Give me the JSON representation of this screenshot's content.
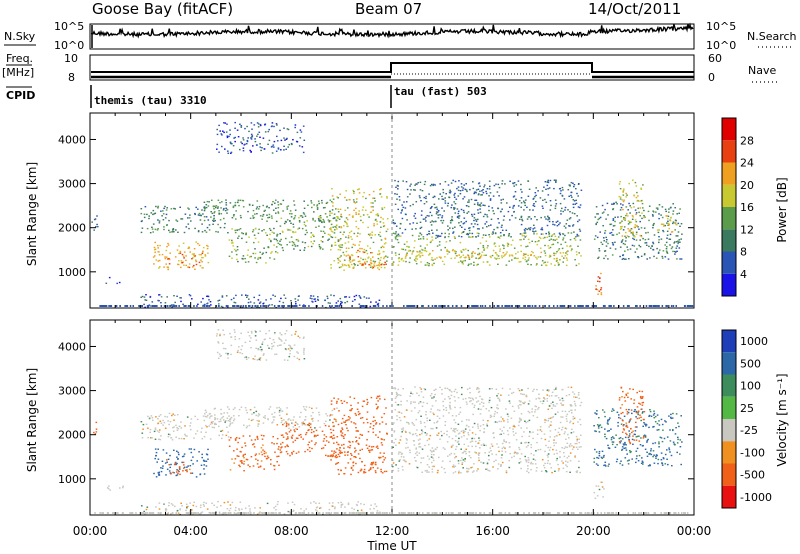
{
  "header": {
    "station": "Goose Bay (fitACF)",
    "beam": "Beam 07",
    "date": "14/Oct/2011"
  },
  "top_panels": {
    "nsky_label": "N.Sky",
    "nsearch_label": "N.Search",
    "noise_ticks_left": [
      "10^5",
      "10^0"
    ],
    "noise_ticks_right": [
      "10^5",
      "10^0"
    ],
    "freq_label_line1": "Freq.",
    "freq_label_line2": "[MHz]",
    "freq_ticks": [
      "10",
      "8"
    ],
    "nave_label": "Nave",
    "nave_ticks": [
      "60",
      "0"
    ],
    "cpid_label": "CPID",
    "cpid_segments": [
      {
        "label": "themis (tau) 3310",
        "start_hour": 0,
        "end_hour": 12
      },
      {
        "label": "tau (fast) 503",
        "start_hour": 12,
        "end_hour": 24
      }
    ]
  },
  "axes": {
    "ylabel": "Slant Range [km]",
    "yticks": [
      "1000",
      "2000",
      "3000",
      "4000"
    ],
    "xticks": [
      "00:00",
      "04:00",
      "08:00",
      "12:00",
      "16:00",
      "20:00",
      "00:00"
    ],
    "xlabel": "Time UT"
  },
  "colorbars": {
    "power": {
      "label": "Power [dB]",
      "ticks": [
        "4",
        "8",
        "12",
        "16",
        "20",
        "24",
        "28"
      ],
      "colors": [
        "#1a12e6",
        "#2a55b5",
        "#3c7a60",
        "#5a9c4a",
        "#c8c830",
        "#f0a020",
        "#e84010",
        "#e00000"
      ]
    },
    "velocity": {
      "label": "Velocity [m s⁻¹]",
      "ticks": [
        "1000",
        "500",
        "100",
        "25",
        "-25",
        "-100",
        "-500",
        "-1000"
      ],
      "colors": [
        "#1f3fb8",
        "#2c68a8",
        "#3c8c5c",
        "#54b844",
        "#c8c8c0",
        "#f09020",
        "#f06018",
        "#e81010"
      ]
    }
  },
  "chart_data": [
    {
      "type": "heatmap",
      "title": "Power [dB]",
      "xlabel": "Time UT",
      "ylabel": "Slant Range [km]",
      "xlim": [
        0,
        24
      ],
      "ylim": [
        180,
        4600
      ],
      "clim": [
        0,
        30
      ],
      "features": [
        {
          "t0": 0.0,
          "t1": 0.3,
          "r0": 1950,
          "r1": 2300,
          "db": 8
        },
        {
          "t0": 0.6,
          "t1": 1.3,
          "r0": 750,
          "r1": 900,
          "db": 6
        },
        {
          "t0": 2.0,
          "t1": 5.5,
          "r0": 1900,
          "r1": 2500,
          "db": 10
        },
        {
          "t0": 2.5,
          "t1": 4.7,
          "r0": 1050,
          "r1": 1700,
          "db": 20
        },
        {
          "t0": 3.0,
          "t1": 4.5,
          "r0": 1100,
          "r1": 1450,
          "db": 24
        },
        {
          "t0": 4.5,
          "t1": 9.8,
          "r0": 2150,
          "r1": 2650,
          "db": 12
        },
        {
          "t0": 5.5,
          "t1": 7.5,
          "r0": 1200,
          "r1": 2000,
          "db": 14
        },
        {
          "t0": 7.5,
          "t1": 10.0,
          "r0": 1500,
          "r1": 2300,
          "db": 14
        },
        {
          "t0": 9.5,
          "t1": 11.8,
          "r0": 1100,
          "r1": 2900,
          "db": 18
        },
        {
          "t0": 10.0,
          "t1": 11.8,
          "r0": 1050,
          "r1": 1500,
          "db": 22
        },
        {
          "t0": 12.0,
          "t1": 19.5,
          "r0": 1800,
          "r1": 3100,
          "db": 8
        },
        {
          "t0": 12.0,
          "t1": 19.5,
          "r0": 1150,
          "r1": 1900,
          "db": 16
        },
        {
          "t0": 12.5,
          "t1": 19.0,
          "r0": 1300,
          "r1": 1500,
          "db": 20
        },
        {
          "t0": 20.0,
          "t1": 20.4,
          "r0": 500,
          "r1": 1000,
          "db": 26
        },
        {
          "t0": 20.0,
          "t1": 23.5,
          "r0": 1300,
          "r1": 2600,
          "db": 10
        },
        {
          "t0": 21.0,
          "t1": 22.0,
          "r0": 1800,
          "r1": 3100,
          "db": 18
        },
        {
          "t0": 22.5,
          "t1": 23.3,
          "r0": 1900,
          "r1": 2300,
          "db": 20
        },
        {
          "t0": 5.0,
          "t1": 8.5,
          "r0": 3700,
          "r1": 4400,
          "db": 6
        },
        {
          "t0": 2.0,
          "t1": 11.5,
          "r0": 200,
          "r1": 500,
          "db": 6
        }
      ]
    },
    {
      "type": "heatmap",
      "title": "Velocity [m s-1]",
      "xlabel": "Time UT",
      "ylabel": "Slant Range [km]",
      "xlim": [
        0,
        24
      ],
      "ylim": [
        180,
        4600
      ],
      "clim": [
        -1000,
        1000
      ],
      "features": [
        {
          "t0": 0.0,
          "t1": 0.3,
          "r0": 1950,
          "r1": 2300,
          "v": -200
        },
        {
          "t0": 0.6,
          "t1": 1.3,
          "r0": 750,
          "r1": 900,
          "v": 0
        },
        {
          "t0": 2.0,
          "t1": 5.5,
          "r0": 1900,
          "r1": 2500,
          "v": 0
        },
        {
          "t0": 2.5,
          "t1": 4.7,
          "r0": 1050,
          "r1": 1700,
          "v": 300
        },
        {
          "t0": 3.0,
          "t1": 4.0,
          "r0": 1100,
          "r1": 1450,
          "v": -150
        },
        {
          "t0": 4.5,
          "t1": 9.8,
          "r0": 2150,
          "r1": 2650,
          "v": 0
        },
        {
          "t0": 5.5,
          "t1": 7.5,
          "r0": 1200,
          "r1": 2000,
          "v": -150
        },
        {
          "t0": 7.5,
          "t1": 10.0,
          "r0": 1500,
          "r1": 2300,
          "v": -200
        },
        {
          "t0": 9.5,
          "t1": 11.8,
          "r0": 1100,
          "r1": 2900,
          "v": -300
        },
        {
          "t0": 12.0,
          "t1": 19.5,
          "r0": 1150,
          "r1": 3100,
          "v": 0
        },
        {
          "t0": 20.0,
          "t1": 20.4,
          "r0": 500,
          "r1": 1000,
          "v": 0
        },
        {
          "t0": 20.0,
          "t1": 23.5,
          "r0": 1300,
          "r1": 2600,
          "v": 120
        },
        {
          "t0": 21.0,
          "t1": 22.0,
          "r0": 1800,
          "r1": 3100,
          "v": -150
        },
        {
          "t0": 5.0,
          "t1": 8.5,
          "r0": 3700,
          "r1": 4400,
          "v": 0
        },
        {
          "t0": 2.0,
          "t1": 11.5,
          "r0": 200,
          "r1": 500,
          "v": 0
        }
      ]
    }
  ]
}
